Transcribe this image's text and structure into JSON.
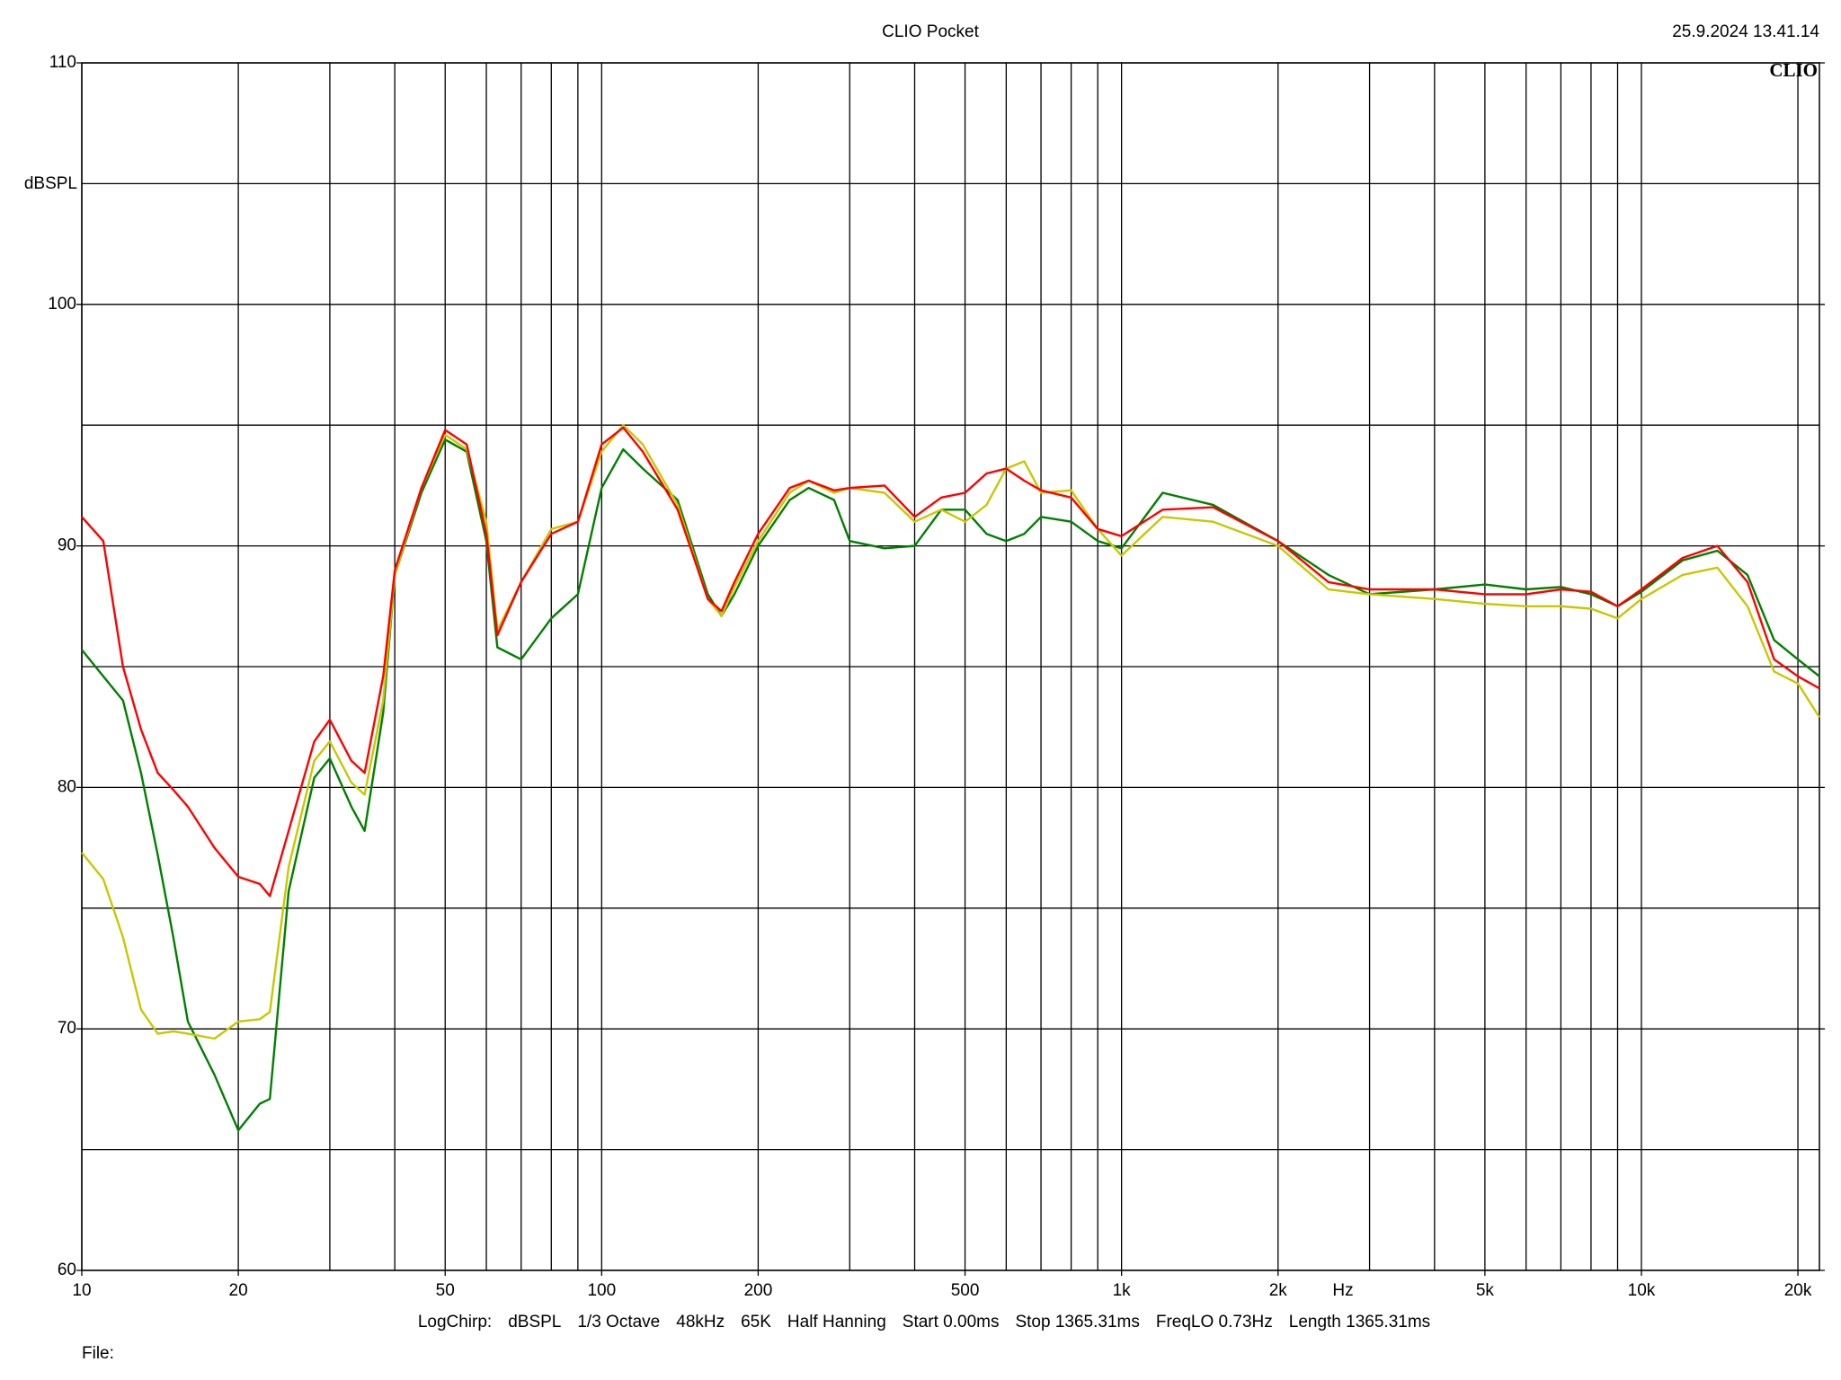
{
  "chart_data": {
    "type": "line",
    "title": "CLIO Pocket",
    "timestamp": "25.9.2024 13.41.14",
    "logo": "CLIO",
    "y_label": "dBSPL",
    "x_label": "Hz",
    "footer": [
      "LogChirp:",
      "dBSPL",
      "1/3 Octave",
      "48kHz",
      "65K",
      "Half Hanning",
      "Start 0.00ms",
      "Stop 1365.31ms",
      "FreqLO 0.73Hz",
      "Length 1365.31ms"
    ],
    "file_label": "File:",
    "x_scale": "log",
    "grid": true,
    "xlim": [
      10,
      22000
    ],
    "ylim": [
      60,
      110
    ],
    "xticks": [
      10,
      20,
      50,
      100,
      200,
      500,
      {
        "value": 1000,
        "label": "1k"
      },
      {
        "value": 2000,
        "label": "2k"
      },
      {
        "value": 5000,
        "label": "5k"
      },
      {
        "value": 10000,
        "label": "10k"
      },
      {
        "value": 20000,
        "label": "20k"
      }
    ],
    "xminor": [
      30,
      40,
      60,
      70,
      80,
      90,
      300,
      400,
      600,
      700,
      800,
      900,
      3000,
      4000,
      6000,
      7000,
      8000,
      9000
    ],
    "yticks": [
      60,
      70,
      80,
      90,
      100,
      110
    ],
    "yminor": [
      65,
      75,
      85,
      95,
      105
    ],
    "x": [
      10,
      11,
      12,
      13,
      14,
      15,
      16,
      18,
      20,
      22,
      23,
      25,
      28,
      30,
      33,
      35,
      38,
      40,
      45,
      50,
      55,
      60,
      63,
      70,
      80,
      90,
      100,
      110,
      120,
      140,
      160,
      170,
      180,
      200,
      230,
      250,
      280,
      300,
      350,
      400,
      450,
      500,
      550,
      600,
      650,
      700,
      800,
      900,
      1000,
      1200,
      1500,
      2000,
      2500,
      3000,
      4000,
      5000,
      6000,
      7000,
      8000,
      9000,
      10000,
      12000,
      14000,
      16000,
      18000,
      20000,
      22000
    ],
    "series": [
      {
        "name": "red",
        "color": "#ff0000",
        "values": [
          91.2,
          90.2,
          85.0,
          82.4,
          80.6,
          79.9,
          79.2,
          77.5,
          76.3,
          76.0,
          75.5,
          78.2,
          81.9,
          82.8,
          81.1,
          80.6,
          84.6,
          89.0,
          92.4,
          94.8,
          94.2,
          90.5,
          86.3,
          88.5,
          90.5,
          91.0,
          94.2,
          94.9,
          93.9,
          91.5,
          87.8,
          87.3,
          88.5,
          90.5,
          92.4,
          92.7,
          92.3,
          92.4,
          92.5,
          91.2,
          92.0,
          92.2,
          93.0,
          93.2,
          92.7,
          92.3,
          92.0,
          90.7,
          90.4,
          91.5,
          91.6,
          90.2,
          88.5,
          88.2,
          88.2,
          88.0,
          88.0,
          88.2,
          88.1,
          87.5,
          88.2,
          89.5,
          90.0,
          88.5,
          85.3,
          84.6,
          84.1
        ]
      },
      {
        "name": "yellow",
        "color": "#c8c800",
        "values": [
          77.3,
          76.2,
          73.8,
          70.8,
          69.8,
          69.9,
          69.8,
          69.6,
          70.3,
          70.4,
          70.7,
          76.7,
          81.1,
          81.9,
          80.2,
          79.7,
          83.6,
          88.8,
          92.4,
          94.6,
          94.0,
          91.0,
          86.5,
          88.5,
          90.7,
          91.0,
          93.9,
          95.0,
          94.2,
          91.7,
          87.8,
          87.1,
          88.3,
          90.2,
          92.2,
          92.7,
          92.2,
          92.4,
          92.2,
          91.0,
          91.5,
          91.0,
          91.7,
          93.2,
          93.5,
          92.2,
          92.3,
          90.7,
          89.6,
          91.2,
          91.0,
          90.0,
          88.2,
          88.0,
          87.8,
          87.6,
          87.5,
          87.5,
          87.4,
          87.0,
          87.8,
          88.8,
          89.1,
          87.5,
          84.8,
          84.3,
          82.9
        ]
      },
      {
        "name": "green",
        "color": "#008000",
        "values": [
          85.7,
          84.6,
          83.6,
          80.6,
          77.2,
          73.8,
          70.3,
          68.1,
          65.8,
          66.9,
          67.1,
          75.7,
          80.4,
          81.2,
          79.2,
          78.2,
          83.1,
          88.8,
          92.2,
          94.4,
          93.9,
          90.2,
          85.8,
          85.3,
          87.0,
          88.0,
          92.4,
          94.0,
          93.2,
          91.9,
          88.0,
          87.1,
          88.0,
          90.0,
          91.9,
          92.4,
          91.9,
          90.2,
          89.9,
          90.0,
          91.5,
          91.5,
          90.5,
          90.2,
          90.5,
          91.2,
          91.0,
          90.2,
          89.9,
          92.2,
          91.7,
          90.2,
          88.8,
          88.0,
          88.2,
          88.4,
          88.2,
          88.3,
          88.0,
          87.5,
          88.1,
          89.4,
          89.8,
          88.8,
          86.1,
          85.3,
          84.6
        ]
      }
    ]
  }
}
